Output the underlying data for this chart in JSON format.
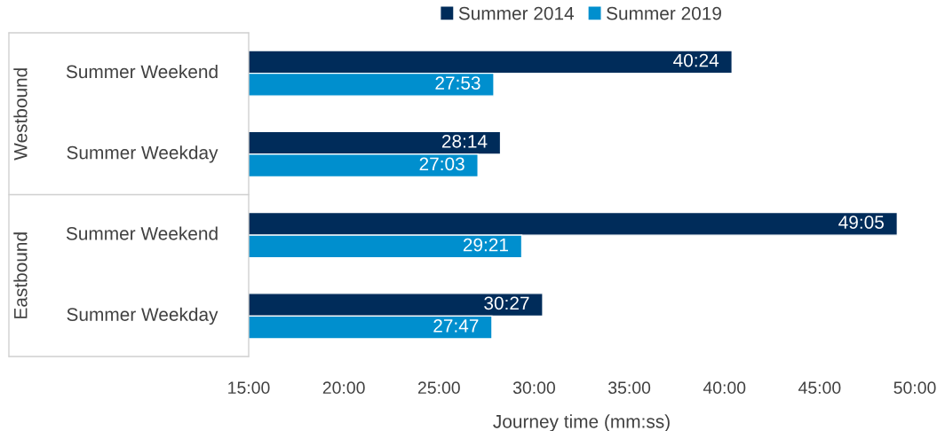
{
  "chart_data": {
    "type": "bar",
    "orientation": "horizontal",
    "xlabel": "Journey time (mm:ss)",
    "categories": [
      "Summer Weekend",
      "Summer Weekday",
      "Summer Weekend",
      "Summer Weekday"
    ],
    "annotations": [
      "Westbound",
      "Eastbound"
    ],
    "series": [
      {
        "name": "Summer 2014",
        "color": "#002c5a",
        "values": [
          40.4,
          28.233,
          49.083,
          30.45
        ],
        "value_labels": [
          "40:24",
          "28:14",
          "49:05",
          "30:27"
        ]
      },
      {
        "name": "Summer 2019",
        "color": "#008fce",
        "values": [
          27.883,
          27.05,
          29.35,
          27.783
        ],
        "value_labels": [
          "27:53",
          "27:03",
          "29:21",
          "27:47"
        ]
      }
    ],
    "xlim": [
      15,
      50
    ],
    "xticks": [
      {
        "value": 15,
        "label": "15:00"
      },
      {
        "value": 20,
        "label": "20:00"
      },
      {
        "value": 25,
        "label": "25:00"
      },
      {
        "value": 30,
        "label": "30:00"
      },
      {
        "value": 35,
        "label": "35:00"
      },
      {
        "value": 40,
        "label": "40:00"
      },
      {
        "value": 45,
        "label": "45:00"
      },
      {
        "value": 50,
        "label": "50:00"
      }
    ],
    "grid": false,
    "legend": "top"
  }
}
